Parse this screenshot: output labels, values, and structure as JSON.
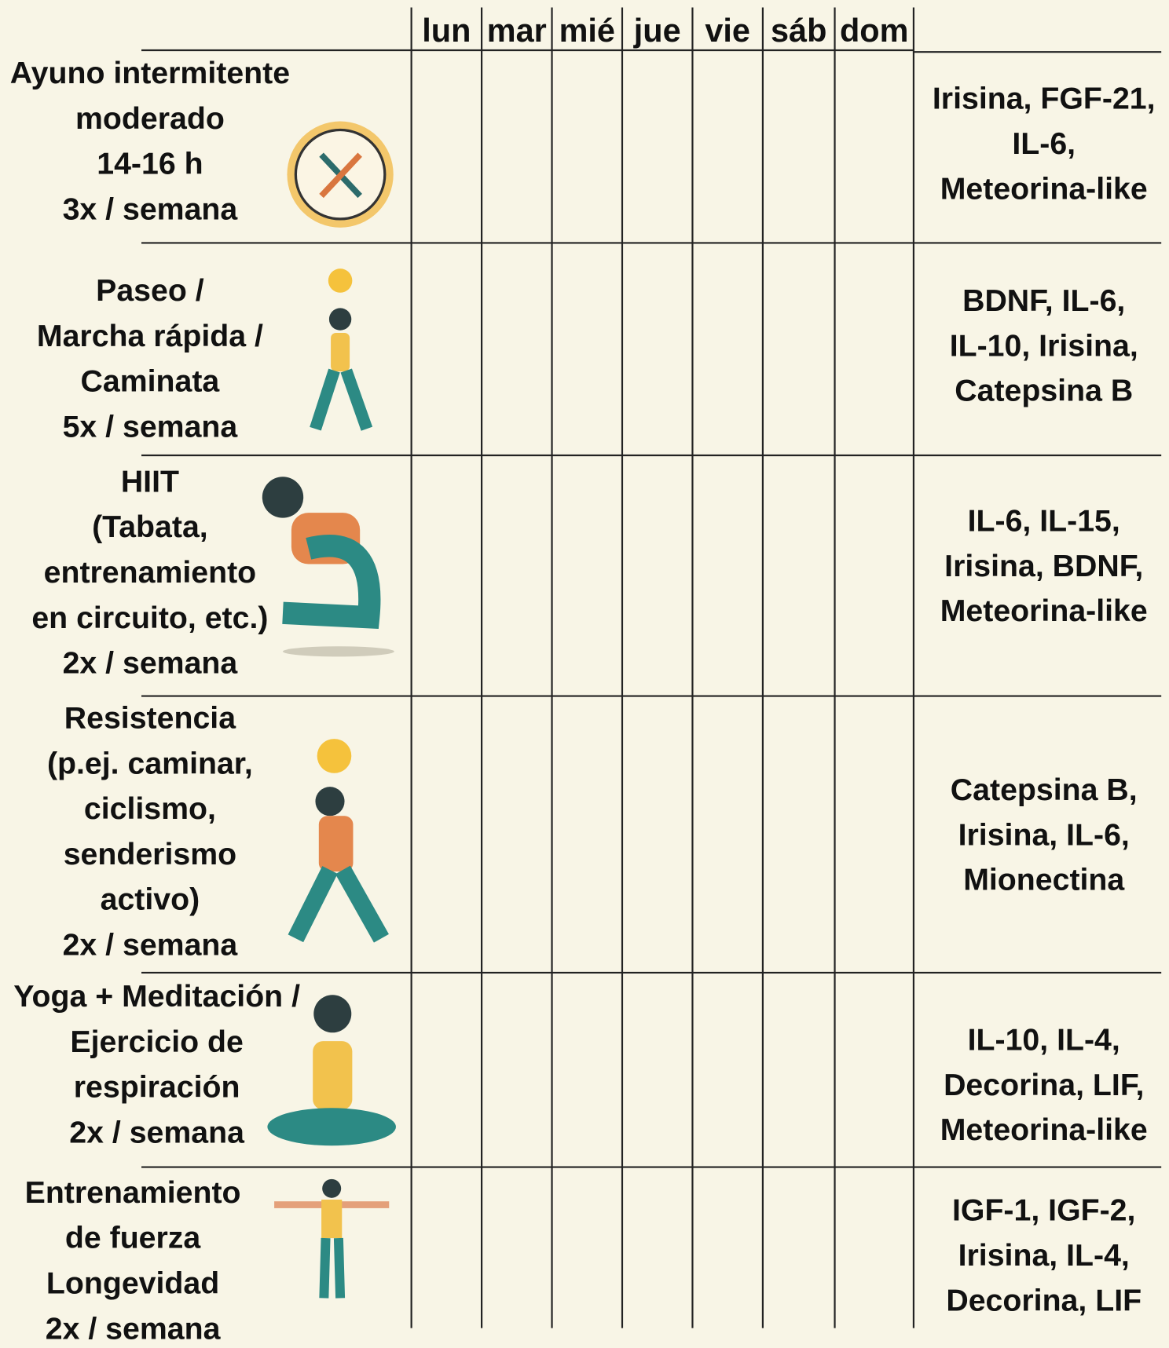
{
  "header": {
    "days": [
      "lun",
      "mar",
      "mié",
      "jue",
      "vie",
      "sáb",
      "dom"
    ]
  },
  "rows": [
    {
      "activity": [
        "Ayuno intermitente",
        "moderado",
        "14-16 h",
        "3x / semana"
      ],
      "myokines": [
        "Irisina, FGF-21,",
        "IL-6,",
        "Meteorina-like"
      ]
    },
    {
      "activity": [
        "Paseo /",
        "Marcha rápida /",
        "Caminata",
        "5x / semana"
      ],
      "myokines": [
        "BDNF, IL-6,",
        "IL-10, Irisina,",
        "Catepsina B"
      ]
    },
    {
      "activity": [
        "HIIT",
        "(Tabata,",
        "entrenamiento",
        "en circuito, etc.)",
        "2x / semana"
      ],
      "myokines": [
        "IL-6, IL-15,",
        "Irisina, BDNF,",
        "Meteorina-like"
      ]
    },
    {
      "activity": [
        "Resistencia",
        "(p.ej. caminar,",
        "ciclismo,",
        "senderismo",
        "activo)",
        "2x / semana"
      ],
      "myokines": [
        "Catepsina B,",
        "Irisina, IL-6,",
        "Mionectina"
      ]
    },
    {
      "activity": [
        "Yoga + Meditación /",
        "Ejercicio de",
        "respiración",
        "2x / semana"
      ],
      "myokines": [
        "IL-10, IL-4,",
        "Decorina, LIF,",
        "Meteorina-like"
      ]
    },
    {
      "activity": [
        "Entrenamiento",
        "de fuerza",
        "Longevidad",
        "2x / semana"
      ],
      "myokines": [
        "IGF-1, IGF-2,",
        "Irisina, IL-4,",
        "Decorina, LIF"
      ]
    }
  ]
}
